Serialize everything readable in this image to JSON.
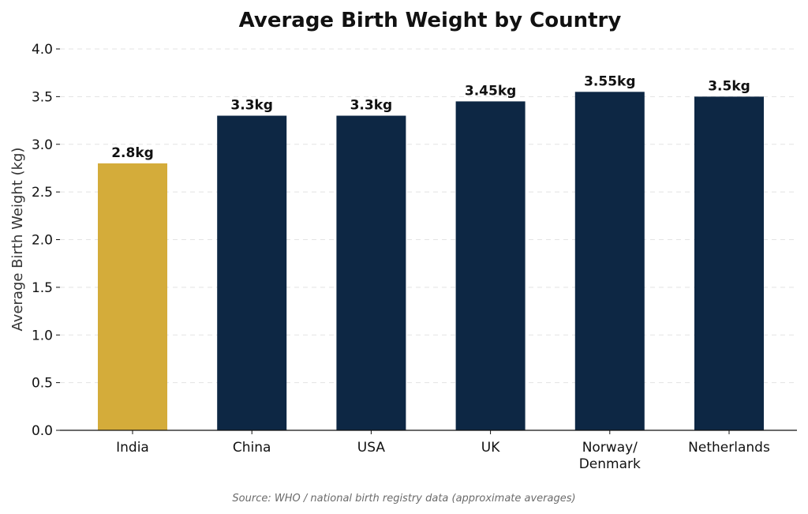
{
  "chart_data": {
    "type": "bar",
    "title": "Average Birth Weight by Country",
    "xlabel": "",
    "ylabel": "Average Birth Weight (kg)",
    "categories": [
      [
        "India"
      ],
      [
        "China"
      ],
      [
        "USA"
      ],
      [
        "UK"
      ],
      [
        "Norway/",
        "Denmark"
      ],
      [
        "Netherlands"
      ]
    ],
    "values": [
      2.8,
      3.3,
      3.3,
      3.45,
      3.55,
      3.5
    ],
    "data_labels": [
      "2.8kg",
      "3.3kg",
      "3.3kg",
      "3.45kg",
      "3.55kg",
      "3.5kg"
    ],
    "ylim": [
      0,
      4.0
    ],
    "yticks": [
      "0.0",
      "0.5",
      "1.0",
      "1.5",
      "2.0",
      "2.5",
      "3.0",
      "3.5",
      "4.0"
    ],
    "ytick_values": [
      0,
      0.5,
      1.0,
      1.5,
      2.0,
      2.5,
      3.0,
      3.5,
      4.0
    ],
    "grid": "horizontal-dashed",
    "colors": {
      "highlight": "#d4ac3a",
      "default": "#0d2744",
      "grid": "#e3e3e3",
      "axis": "#111111"
    },
    "highlight_index": 0,
    "source": "Source: WHO / national birth registry data (approximate averages)"
  }
}
